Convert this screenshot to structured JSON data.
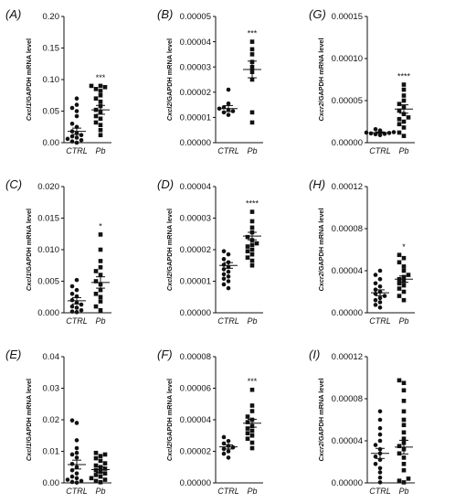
{
  "chart_data": [
    {
      "panel": "(A)",
      "type": "scatter",
      "ylabel_gene": "Cxcl1",
      "ylabel_rest": "/GAPDH mRNA level",
      "categories": [
        "CTRL",
        "Pb"
      ],
      "yticks": [
        "0.00",
        "0.05",
        "0.10",
        "0.15",
        "0.20"
      ],
      "ylim": [
        0,
        0.2
      ],
      "series": [
        {
          "values": [
            0.0,
            0.002,
            0.004,
            0.006,
            0.008,
            0.01,
            0.012,
            0.015,
            0.018,
            0.025,
            0.03,
            0.042,
            0.05,
            0.055,
            0.06,
            0.07
          ],
          "mean": 0.018,
          "sem": 0.005
        },
        {
          "values": [
            0.012,
            0.02,
            0.028,
            0.032,
            0.038,
            0.042,
            0.048,
            0.052,
            0.058,
            0.065,
            0.07,
            0.075,
            0.082,
            0.085,
            0.088,
            0.09,
            0.09
          ],
          "mean": 0.052,
          "sem": 0.007
        }
      ],
      "significance": "***"
    },
    {
      "panel": "(B)",
      "type": "scatter",
      "ylabel_gene": "Cxcl2",
      "ylabel_rest": "/GAPDH mRNA level",
      "categories": [
        "CTRL",
        "Pb"
      ],
      "yticks": [
        "0.00000",
        "0.00001",
        "0.00002",
        "0.00003",
        "0.00004",
        "0.00005"
      ],
      "ylim": [
        0,
        5e-05
      ],
      "series": [
        {
          "values": [
            1.1e-05,
            1.2e-05,
            1.25e-05,
            1.3e-05,
            1.35e-05,
            1.4e-05,
            1.55e-05,
            2.1e-05
          ],
          "mean": 1.35e-05,
          "sem": 1.2e-06
        },
        {
          "values": [
            8e-06,
            1.2e-05,
            2.5e-05,
            2.8e-05,
            3e-05,
            3.2e-05,
            3.5e-05,
            3.7e-05,
            4e-05
          ],
          "mean": 2.9e-05,
          "sem": 3.3e-06
        }
      ],
      "significance": "***"
    },
    {
      "panel": "(G)",
      "type": "scatter",
      "ylabel_gene": "Cxcr2",
      "ylabel_rest": "/GAPDH mRNA level",
      "categories": [
        "CTRL",
        "Pb"
      ],
      "yticks": [
        "0.00000",
        "0.00005",
        "0.00010",
        "0.00015"
      ],
      "ylim": [
        0,
        0.00015
      ],
      "series": [
        {
          "values": [
            9e-06,
            1e-05,
            1.05e-05,
            1.1e-05,
            1.15e-05,
            1.2e-05,
            1.25e-05,
            1.3e-05,
            1.45e-05,
            1.6e-05
          ],
          "mean": 1.2e-05,
          "sem": 8e-07
        },
        {
          "values": [
            8e-06,
            1.2e-05,
            1.8e-05,
            2.2e-05,
            2.5e-05,
            2.8e-05,
            3e-05,
            3.4e-05,
            3.8e-05,
            4.2e-05,
            4.6e-05,
            5e-05,
            5.6e-05,
            6.3e-05,
            6.9e-05
          ],
          "mean": 4e-05,
          "sem": 5e-06
        }
      ],
      "significance": "****"
    },
    {
      "panel": "(C)",
      "type": "scatter",
      "ylabel_gene": "Cxcl1",
      "ylabel_rest": "/GAPDH mRNA level",
      "categories": [
        "CTRL",
        "Pb"
      ],
      "yticks": [
        "0.000",
        "0.005",
        "0.010",
        "0.015",
        "0.020"
      ],
      "ylim": [
        0,
        0.02
      ],
      "series": [
        {
          "values": [
            0.0001,
            0.0002,
            0.0004,
            0.0008,
            0.001,
            0.0013,
            0.0016,
            0.002,
            0.0026,
            0.003,
            0.0036,
            0.0042,
            0.0052
          ],
          "mean": 0.0019,
          "sem": 0.0005
        },
        {
          "values": [
            0.0004,
            0.001,
            0.0018,
            0.0025,
            0.003,
            0.0036,
            0.0045,
            0.005,
            0.006,
            0.0066,
            0.0072,
            0.0082,
            0.01,
            0.0124
          ],
          "mean": 0.0048,
          "sem": 0.0009
        }
      ],
      "significance": "*"
    },
    {
      "panel": "(D)",
      "type": "scatter",
      "ylabel_gene": "Cxcl2",
      "ylabel_rest": "/GAPDH mRNA level",
      "categories": [
        "CTRL",
        "Pb"
      ],
      "yticks": [
        "0.00000",
        "0.00001",
        "0.00002",
        "0.00003",
        "0.00004"
      ],
      "ylim": [
        0,
        4e-05
      ],
      "series": [
        {
          "values": [
            7.8e-06,
            9e-06,
            1e-05,
            1.08e-05,
            1.15e-05,
            1.22e-05,
            1.3e-05,
            1.38e-05,
            1.45e-05,
            1.52e-05,
            1.6e-05,
            1.7e-05,
            1.85e-05,
            1.95e-05
          ],
          "mean": 1.5e-05,
          "sem": 9e-07
        },
        {
          "values": [
            1.5e-05,
            1.65e-05,
            1.75e-05,
            1.85e-05,
            1.95e-05,
            2e-05,
            2.1e-05,
            2.15e-05,
            2.2e-05,
            2.3e-05,
            2.4e-05,
            2.55e-05,
            2.7e-05,
            2.9e-05,
            3.2e-05
          ],
          "mean": 2.43e-05,
          "sem": 1.2e-06
        }
      ],
      "significance": "****"
    },
    {
      "panel": "(H)",
      "type": "scatter",
      "ylabel_gene": "Cxcr2",
      "ylabel_rest": "/GAPDH mRNA level",
      "categories": [
        "CTRL",
        "Pb"
      ],
      "yticks": [
        "0.00000",
        "0.00004",
        "0.00008",
        "0.00012"
      ],
      "ylim": [
        0,
        0.00012
      ],
      "series": [
        {
          "values": [
            5e-06,
            7.5e-06,
            1e-05,
            1.2e-05,
            1.4e-05,
            1.6e-05,
            1.8e-05,
            2e-05,
            2.2e-05,
            2.5e-05,
            2.8e-05,
            3.2e-05,
            3.6e-05,
            4e-05
          ],
          "mean": 1.9e-05,
          "sem": 2.8e-06
        },
        {
          "values": [
            1.2e-05,
            1.6e-05,
            2e-05,
            2.3e-05,
            2.6e-05,
            2.8e-05,
            3e-05,
            3.2e-05,
            3.4e-05,
            3.6e-05,
            4e-05,
            4.4e-05,
            4.8e-05,
            5.2e-05,
            5.5e-05
          ],
          "mean": 3.2e-05,
          "sem": 3e-06
        }
      ],
      "significance": "*"
    },
    {
      "panel": "(E)",
      "type": "scatter",
      "ylabel_gene": "Cxcl1",
      "ylabel_rest": "/GAPDH mRNA level",
      "categories": [
        "CTRL",
        "Pb"
      ],
      "yticks": [
        "0.00",
        "0.01",
        "0.02",
        "0.03",
        "0.04"
      ],
      "ylim": [
        0,
        0.04
      ],
      "series": [
        {
          "values": [
            0.0001,
            0.0003,
            0.0006,
            0.001,
            0.0015,
            0.002,
            0.003,
            0.004,
            0.005,
            0.006,
            0.008,
            0.009,
            0.0095,
            0.011,
            0.0135,
            0.019,
            0.0198
          ],
          "mean": 0.0058,
          "sem": 0.0014
        },
        {
          "values": [
            0.0002,
            0.0006,
            0.001,
            0.0015,
            0.002,
            0.0025,
            0.003,
            0.0035,
            0.004,
            0.0045,
            0.005,
            0.0055,
            0.0062,
            0.007,
            0.0078,
            0.0085,
            0.009,
            0.0095
          ],
          "mean": 0.0042,
          "sem": 0.0009
        }
      ],
      "significance": ""
    },
    {
      "panel": "(F)",
      "type": "scatter",
      "ylabel_gene": "Cxcl2",
      "ylabel_rest": "/GAPDH mRNA level",
      "categories": [
        "CTRL",
        "Pb"
      ],
      "yticks": [
        "0.00000",
        "0.00002",
        "0.00004",
        "0.00006",
        "0.00008"
      ],
      "ylim": [
        0,
        8e-05
      ],
      "series": [
        {
          "values": [
            1.6e-05,
            1.85e-05,
            2e-05,
            2.15e-05,
            2.25e-05,
            2.35e-05,
            2.5e-05,
            2.65e-05,
            2.9e-05
          ],
          "mean": 2.28e-05,
          "sem": 1.3e-06
        },
        {
          "values": [
            2.2e-05,
            2.55e-05,
            2.8e-05,
            3e-05,
            3.15e-05,
            3.3e-05,
            3.45e-05,
            3.6e-05,
            3.85e-05,
            4e-05,
            4.2e-05,
            4.55e-05,
            4.9e-05,
            5.9e-05
          ],
          "mean": 3.78e-05,
          "sem": 2.5e-06
        }
      ],
      "significance": "***"
    },
    {
      "panel": "(I)",
      "type": "scatter",
      "ylabel_gene": "Cxcr2",
      "ylabel_rest": "/GAPDH mRNA level",
      "categories": [
        "CTRL",
        "Pb"
      ],
      "yticks": [
        "0.00000",
        "0.00004",
        "0.00008",
        "0.00012"
      ],
      "ylim": [
        0,
        0.00012
      ],
      "series": [
        {
          "values": [
            5e-07,
            5e-06,
            1e-05,
            1.4e-05,
            1.8e-05,
            2.2e-05,
            2.5e-05,
            2.8e-05,
            3.2e-05,
            3.6e-05,
            4e-05,
            4.6e-05,
            5.2e-05,
            6e-05,
            6.8e-05
          ],
          "mean": 2.8e-05,
          "sem": 4.8e-06
        },
        {
          "values": [
            5e-07,
            2e-06,
            4e-06,
            1.2e-05,
            1.8e-05,
            2.4e-05,
            2.8e-05,
            3.2e-05,
            3.5e-05,
            3.8e-05,
            4.2e-05,
            4.8e-05,
            5.5e-05,
            6e-05,
            6.8e-05,
            7.8e-05,
            8.8e-05,
            9.5e-05,
            9.75e-05
          ],
          "mean": 3.4e-05,
          "sem": 6.5e-06
        }
      ],
      "significance": ""
    }
  ]
}
